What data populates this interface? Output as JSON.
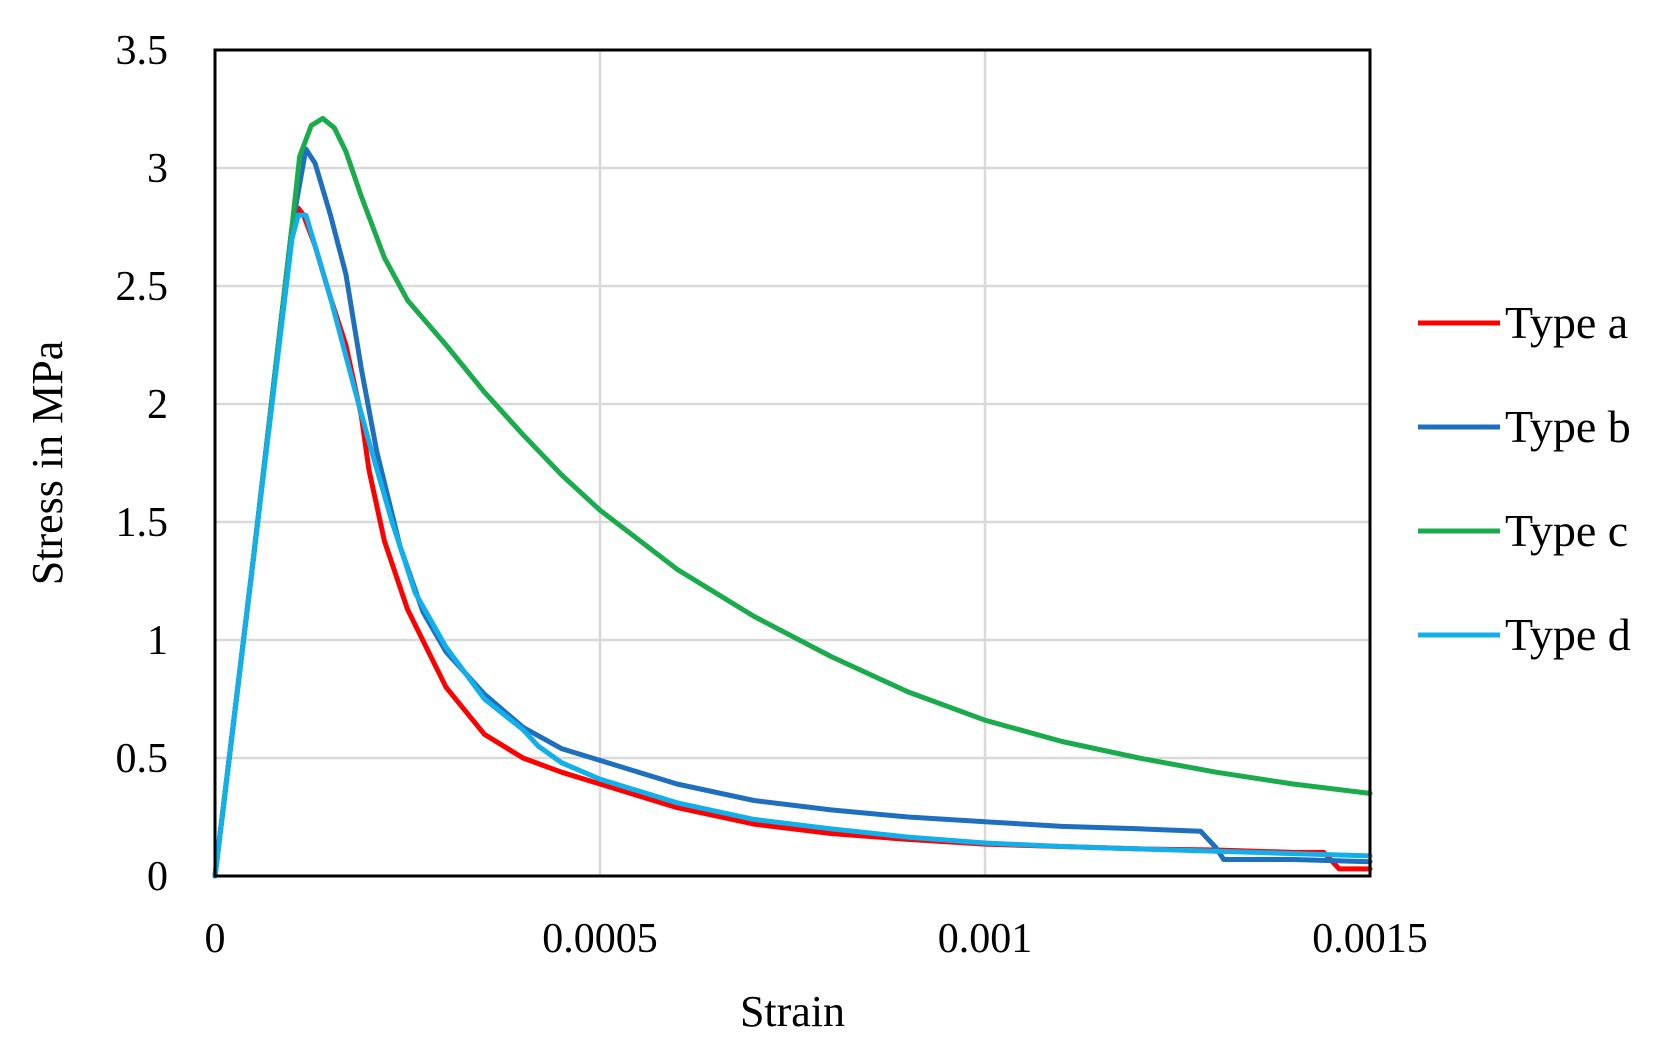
{
  "chart_data": {
    "type": "line",
    "title": "",
    "xlabel": "Strain",
    "ylabel": "Stress in MPa",
    "xlim": [
      0,
      0.0015
    ],
    "ylim": [
      0,
      3.5
    ],
    "xticks": [
      0,
      0.0005,
      0.001,
      0.0015
    ],
    "xtick_labels": [
      "0",
      "0.0005",
      "0.001",
      "0.0015"
    ],
    "yticks": [
      0,
      0.5,
      1,
      1.5,
      2,
      2.5,
      3,
      3.5
    ],
    "ytick_labels": [
      "0",
      "0.5",
      "1",
      "1.5",
      "2",
      "2.5",
      "3",
      "3.5"
    ],
    "grid": true,
    "legend_position": "right",
    "series": [
      {
        "name": "Type a",
        "color": "#ff0000",
        "points": [
          [
            0,
            0
          ],
          [
            5e-05,
            1.35
          ],
          [
            0.0001,
            2.75
          ],
          [
            0.000108,
            2.83
          ],
          [
            0.000115,
            2.8
          ],
          [
            0.00013,
            2.67
          ],
          [
            0.00015,
            2.45
          ],
          [
            0.00017,
            2.25
          ],
          [
            0.00019,
            1.95
          ],
          [
            0.0002,
            1.72
          ],
          [
            0.00022,
            1.42
          ],
          [
            0.00025,
            1.13
          ],
          [
            0.0003,
            0.8
          ],
          [
            0.00035,
            0.6
          ],
          [
            0.0004,
            0.5
          ],
          [
            0.00045,
            0.44
          ],
          [
            0.0005,
            0.39
          ],
          [
            0.0006,
            0.29
          ],
          [
            0.0007,
            0.22
          ],
          [
            0.0008,
            0.18
          ],
          [
            0.0009,
            0.155
          ],
          [
            0.001,
            0.135
          ],
          [
            0.0011,
            0.125
          ],
          [
            0.0012,
            0.115
          ],
          [
            0.0013,
            0.11
          ],
          [
            0.0014,
            0.1
          ],
          [
            0.00144,
            0.1
          ],
          [
            0.00146,
            0.03
          ],
          [
            0.0015,
            0.03
          ]
        ]
      },
      {
        "name": "Type b",
        "color": "#1f6fbf",
        "points": [
          [
            0,
            0
          ],
          [
            5e-05,
            1.35
          ],
          [
            0.0001,
            2.75
          ],
          [
            0.000118,
            3.08
          ],
          [
            0.00013,
            3.02
          ],
          [
            0.00015,
            2.8
          ],
          [
            0.00017,
            2.55
          ],
          [
            0.00019,
            2.15
          ],
          [
            0.00021,
            1.8
          ],
          [
            0.00024,
            1.4
          ],
          [
            0.00027,
            1.12
          ],
          [
            0.0003,
            0.95
          ],
          [
            0.00035,
            0.77
          ],
          [
            0.0004,
            0.63
          ],
          [
            0.00045,
            0.54
          ],
          [
            0.0005,
            0.49
          ],
          [
            0.0006,
            0.39
          ],
          [
            0.0007,
            0.32
          ],
          [
            0.0008,
            0.28
          ],
          [
            0.0009,
            0.25
          ],
          [
            0.001,
            0.23
          ],
          [
            0.0011,
            0.21
          ],
          [
            0.0012,
            0.2
          ],
          [
            0.00128,
            0.19
          ],
          [
            0.0013,
            0.12
          ],
          [
            0.00131,
            0.07
          ],
          [
            0.0014,
            0.07
          ],
          [
            0.0015,
            0.06
          ]
        ]
      },
      {
        "name": "Type c",
        "color": "#1aab4c",
        "points": [
          [
            0,
            0
          ],
          [
            5e-05,
            1.35
          ],
          [
            0.0001,
            2.75
          ],
          [
            0.00011,
            3.05
          ],
          [
            0.000125,
            3.18
          ],
          [
            0.00014,
            3.21
          ],
          [
            0.000155,
            3.17
          ],
          [
            0.00017,
            3.07
          ],
          [
            0.00019,
            2.88
          ],
          [
            0.00022,
            2.62
          ],
          [
            0.00025,
            2.44
          ],
          [
            0.0003,
            2.25
          ],
          [
            0.00035,
            2.05
          ],
          [
            0.0004,
            1.87
          ],
          [
            0.00045,
            1.7
          ],
          [
            0.0005,
            1.55
          ],
          [
            0.0006,
            1.3
          ],
          [
            0.0007,
            1.1
          ],
          [
            0.0008,
            0.93
          ],
          [
            0.0009,
            0.78
          ],
          [
            0.001,
            0.66
          ],
          [
            0.0011,
            0.57
          ],
          [
            0.0012,
            0.5
          ],
          [
            0.0013,
            0.44
          ],
          [
            0.0014,
            0.39
          ],
          [
            0.0015,
            0.35
          ]
        ]
      },
      {
        "name": "Type d",
        "color": "#11b0ea",
        "points": [
          [
            0,
            0
          ],
          [
            5e-05,
            1.35
          ],
          [
            0.0001,
            2.7
          ],
          [
            0.000108,
            2.8
          ],
          [
            0.000118,
            2.8
          ],
          [
            0.00013,
            2.67
          ],
          [
            0.00015,
            2.45
          ],
          [
            0.00018,
            2.08
          ],
          [
            0.0002,
            1.84
          ],
          [
            0.00023,
            1.5
          ],
          [
            0.00026,
            1.2
          ],
          [
            0.0003,
            0.97
          ],
          [
            0.00035,
            0.75
          ],
          [
            0.0004,
            0.62
          ],
          [
            0.00042,
            0.55
          ],
          [
            0.00045,
            0.48
          ],
          [
            0.0005,
            0.41
          ],
          [
            0.0006,
            0.31
          ],
          [
            0.0007,
            0.24
          ],
          [
            0.0008,
            0.2
          ],
          [
            0.0009,
            0.165
          ],
          [
            0.001,
            0.14
          ],
          [
            0.0011,
            0.125
          ],
          [
            0.0012,
            0.115
          ],
          [
            0.0013,
            0.105
          ],
          [
            0.0014,
            0.095
          ],
          [
            0.0015,
            0.085
          ]
        ]
      }
    ]
  }
}
